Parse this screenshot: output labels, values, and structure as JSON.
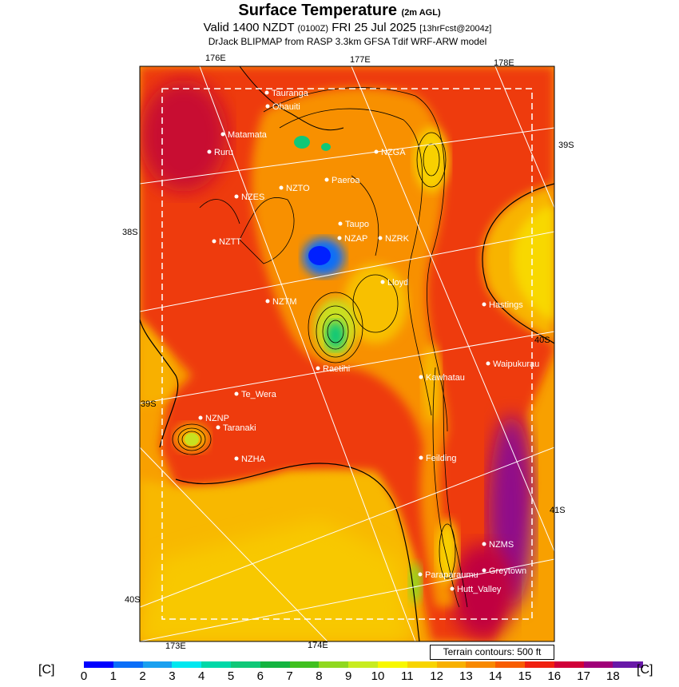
{
  "header": {
    "title": "Surface Temperature",
    "title_suffix": "(2m AGL)",
    "valid_prefix": "Valid 1400 NZDT",
    "valid_utc": "(0100Z)",
    "valid_date": "FRI 25 Jul 2025",
    "forecast": "[13hrFcst@2004z]",
    "source": "DrJack BLIPMAP from RASP 3.3km GFSA Tdif WRF-ARW model"
  },
  "axes": {
    "top_lon": [
      "176E",
      "177E",
      "178E"
    ],
    "bottom_lon": [
      "173E",
      "174E"
    ],
    "left_lat": [
      "38S",
      "39S",
      "40S"
    ],
    "right_lat": [
      "39S",
      "40S",
      "41S"
    ]
  },
  "places": [
    {
      "name": "Tauranga"
    },
    {
      "name": "Ohauiti"
    },
    {
      "name": "Matamata"
    },
    {
      "name": "Ruru"
    },
    {
      "name": "NZGA"
    },
    {
      "name": "Paeroa"
    },
    {
      "name": "NZES"
    },
    {
      "name": "NZTO"
    },
    {
      "name": "Taupo"
    },
    {
      "name": "NZAP"
    },
    {
      "name": "NZRK"
    },
    {
      "name": "NZTT"
    },
    {
      "name": "Lloyd"
    },
    {
      "name": "NZTM"
    },
    {
      "name": "Hastings"
    },
    {
      "name": "Raetihi"
    },
    {
      "name": "Waipukurau"
    },
    {
      "name": "Kawhatau"
    },
    {
      "name": "Te_Wera"
    },
    {
      "name": "NZNP"
    },
    {
      "name": "Taranaki"
    },
    {
      "name": "NZHA"
    },
    {
      "name": "Feilding"
    },
    {
      "name": "NZMS"
    },
    {
      "name": "Greytown"
    },
    {
      "name": "Paraparaumu"
    },
    {
      "name": "Hutt_Valley"
    }
  ],
  "legend": {
    "terrain_note": "Terrain contours: 500 ft",
    "unit": "[C]",
    "ticks": [
      "0",
      "1",
      "2",
      "3",
      "4",
      "5",
      "6",
      "7",
      "8",
      "9",
      "10",
      "11",
      "12",
      "13",
      "14",
      "15",
      "16",
      "17",
      "18"
    ],
    "colors": [
      "#0000ff",
      "#0a6ef8",
      "#1aa0f0",
      "#00e8f0",
      "#00d8a8",
      "#10c878",
      "#14b440",
      "#40c020",
      "#90d820",
      "#c8ec20",
      "#f8f800",
      "#f8d400",
      "#f8b000",
      "#f88800",
      "#f85c00",
      "#f02010",
      "#d00038",
      "#a00078",
      "#6818a8"
    ]
  }
}
